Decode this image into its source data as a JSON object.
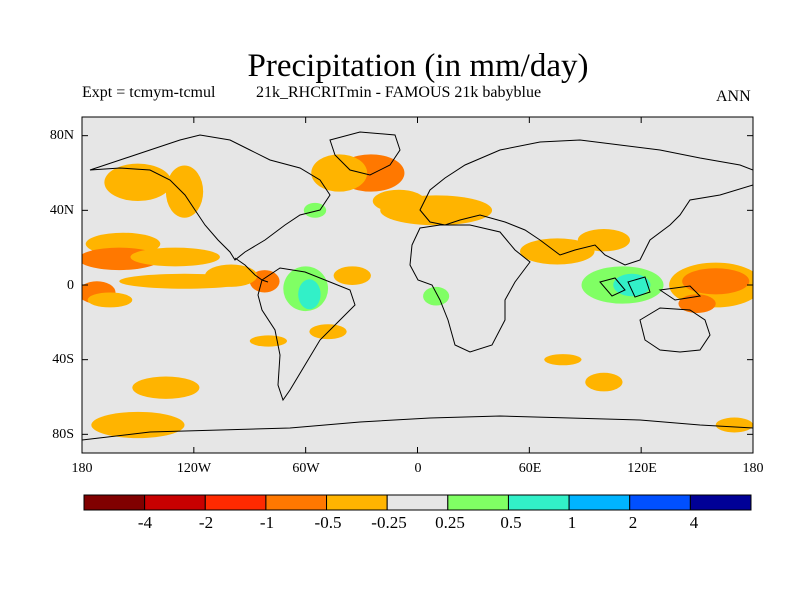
{
  "title": "Precipitation (in mm/day)",
  "subtitle_left": "Expt = tcmym-tcmul",
  "subtitle_center": "21k_RHCRITmin - FAMOUS 21k babyblue",
  "subtitle_right": "ANN",
  "colors": {
    "background": "#e6e6e6",
    "coast": "#000000",
    "bins": [
      "#800000",
      "#c80000",
      "#ff2a00",
      "#ff7800",
      "#ffb400",
      "#e6e6e6",
      "#80ff64",
      "#32f0c8",
      "#00b4ff",
      "#0050ff",
      "#000096"
    ]
  },
  "axes": {
    "lat_ticks": [
      "80N",
      "40N",
      "0",
      "40S",
      "80S"
    ],
    "lon_ticks": [
      "180",
      "120W",
      "60W",
      "0",
      "60E",
      "120E",
      "180"
    ]
  },
  "colorbar": {
    "labels": [
      "-4",
      "-2",
      "-1",
      "-0.5",
      "-0.25",
      "0.25",
      "0.5",
      "1",
      "2",
      "4"
    ]
  },
  "chart_data": {
    "type": "heatmap",
    "title": "Precipitation (in mm/day)",
    "variable": "precipitation difference",
    "units": "mm/day",
    "period": "ANN",
    "xlim": [
      -180,
      180
    ],
    "ylim": [
      -90,
      90
    ],
    "contour_levels": [
      -4,
      -2,
      -1,
      -0.5,
      -0.25,
      0.25,
      0.5,
      1,
      2,
      4
    ],
    "regions": [
      {
        "lon": -150,
        "lat": 55,
        "rx": 18,
        "ry": 10,
        "bin": 4
      },
      {
        "lon": -125,
        "lat": 50,
        "rx": 10,
        "ry": 14,
        "bin": 4
      },
      {
        "lon": -158,
        "lat": 22,
        "rx": 20,
        "ry": 6,
        "bin": 4
      },
      {
        "lon": -160,
        "lat": 14,
        "rx": 22,
        "ry": 6,
        "bin": 3
      },
      {
        "lon": -130,
        "lat": 15,
        "rx": 24,
        "ry": 5,
        "bin": 4
      },
      {
        "lon": -125,
        "lat": 2,
        "rx": 35,
        "ry": 4,
        "bin": 4
      },
      {
        "lon": -172,
        "lat": -4,
        "rx": 10,
        "ry": 6,
        "bin": 3
      },
      {
        "lon": -165,
        "lat": -8,
        "rx": 12,
        "ry": 4,
        "bin": 4
      },
      {
        "lon": -82,
        "lat": 2,
        "rx": 8,
        "ry": 6,
        "bin": 3
      },
      {
        "lon": -100,
        "lat": 5,
        "rx": 14,
        "ry": 6,
        "bin": 4
      },
      {
        "lon": -25,
        "lat": 60,
        "rx": 18,
        "ry": 10,
        "bin": 3
      },
      {
        "lon": -42,
        "lat": 60,
        "rx": 15,
        "ry": 10,
        "bin": 4
      },
      {
        "lon": -10,
        "lat": 45,
        "rx": 14,
        "ry": 6,
        "bin": 4
      },
      {
        "lon": 10,
        "lat": 40,
        "rx": 30,
        "ry": 8,
        "bin": 4
      },
      {
        "lon": -55,
        "lat": 40,
        "rx": 6,
        "ry": 4,
        "bin": 6
      },
      {
        "lon": -35,
        "lat": 5,
        "rx": 10,
        "ry": 5,
        "bin": 4
      },
      {
        "lon": -60,
        "lat": -2,
        "rx": 12,
        "ry": 12,
        "bin": 6
      },
      {
        "lon": -58,
        "lat": -5,
        "rx": 6,
        "ry": 8,
        "bin": 7
      },
      {
        "lon": -48,
        "lat": -25,
        "rx": 10,
        "ry": 4,
        "bin": 4
      },
      {
        "lon": -80,
        "lat": -30,
        "rx": 10,
        "ry": 3,
        "bin": 4
      },
      {
        "lon": -135,
        "lat": -55,
        "rx": 18,
        "ry": 6,
        "bin": 4
      },
      {
        "lon": -150,
        "lat": -75,
        "rx": 25,
        "ry": 7,
        "bin": 4
      },
      {
        "lon": 10,
        "lat": -6,
        "rx": 7,
        "ry": 5,
        "bin": 6
      },
      {
        "lon": 78,
        "lat": -40,
        "rx": 10,
        "ry": 3,
        "bin": 4
      },
      {
        "lon": 100,
        "lat": -52,
        "rx": 10,
        "ry": 5,
        "bin": 4
      },
      {
        "lon": 75,
        "lat": 18,
        "rx": 20,
        "ry": 7,
        "bin": 4
      },
      {
        "lon": 100,
        "lat": 24,
        "rx": 14,
        "ry": 6,
        "bin": 4
      },
      {
        "lon": 110,
        "lat": 0,
        "rx": 22,
        "ry": 10,
        "bin": 6
      },
      {
        "lon": 115,
        "lat": 0,
        "rx": 10,
        "ry": 6,
        "bin": 7
      },
      {
        "lon": 160,
        "lat": 0,
        "rx": 25,
        "ry": 12,
        "bin": 4
      },
      {
        "lon": 160,
        "lat": 2,
        "rx": 18,
        "ry": 7,
        "bin": 3
      },
      {
        "lon": 150,
        "lat": -10,
        "rx": 10,
        "ry": 5,
        "bin": 3
      },
      {
        "lon": 170,
        "lat": -75,
        "rx": 10,
        "ry": 4,
        "bin": 4
      }
    ]
  }
}
